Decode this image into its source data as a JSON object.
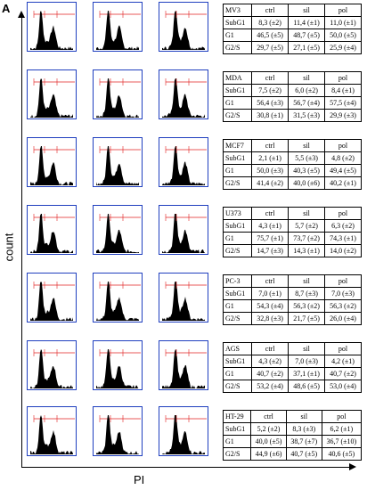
{
  "panel": "A",
  "y_axis_label": "count",
  "x_axis_label": "PI",
  "columns": [
    "ctrl",
    "sil",
    "pol"
  ],
  "row_labels": [
    "SubG1",
    "G1",
    "G2/S"
  ],
  "cell_lines": [
    {
      "name": "MV3",
      "rows": [
        [
          "8,3 (±2)",
          "11,4 (±1)",
          "11,0 (±1)"
        ],
        [
          "46,5 (±5)",
          "48,7 (±5)",
          "50,0 (±5)"
        ],
        [
          "29,7 (±5)",
          "27,1 (±5)",
          "25,9 (±4)"
        ]
      ]
    },
    {
      "name": "MDA",
      "rows": [
        [
          "7,5 (±2)",
          "6,0 (±2)",
          "8,4 (±1)"
        ],
        [
          "56,4 (±3)",
          "56,7 (±4)",
          "57,5 (±4)"
        ],
        [
          "30,8 (±1)",
          "31,5 (±3)",
          "29,9 (±3)"
        ]
      ]
    },
    {
      "name": "MCF7",
      "rows": [
        [
          "2,1 (±1)",
          "5,5 (±3)",
          "4,8 (±2)"
        ],
        [
          "50,0 (±3)",
          "40,3 (±5)",
          "49,4 (±5)"
        ],
        [
          "41,4 (±2)",
          "40,0 (±6)",
          "40,2 (±1)"
        ]
      ]
    },
    {
      "name": "U373",
      "rows": [
        [
          "4,3 (±1)",
          "5,7 (±2)",
          "6,3 (±2)"
        ],
        [
          "75,7 (±1)",
          "73,7 (±2)",
          "74,3 (±1)"
        ],
        [
          "14,7 (±3)",
          "14,3 (±1)",
          "14,0 (±2)"
        ]
      ]
    },
    {
      "name": "PC-3",
      "rows": [
        [
          "7,0 (±1)",
          "8,7 (±3)",
          "7,0 (±3)"
        ],
        [
          "54,3 (±4)",
          "56,3 (±2)",
          "56,3 (±2)"
        ],
        [
          "32,8 (±3)",
          "21,7 (±5)",
          "26,0 (±4)"
        ]
      ]
    },
    {
      "name": "AGS",
      "rows": [
        [
          "4,3 (±2)",
          "7,0 (±3)",
          "4,2 (±1)"
        ],
        [
          "40,7 (±2)",
          "37,1 (±1)",
          "40,7 (±2)"
        ],
        [
          "53,2 (±4)",
          "48,6 (±5)",
          "53,0 (±4)"
        ]
      ]
    },
    {
      "name": "HT-29",
      "rows": [
        [
          "5,2 (±2)",
          "8,3 (±3)",
          "6,2 (±1)"
        ],
        [
          "40,0 (±5)",
          "38,7 (±7)",
          "36,7 (±10)"
        ],
        [
          "44,9 (±6)",
          "40,7 (±5)",
          "40,6 (±5)"
        ]
      ]
    }
  ]
}
